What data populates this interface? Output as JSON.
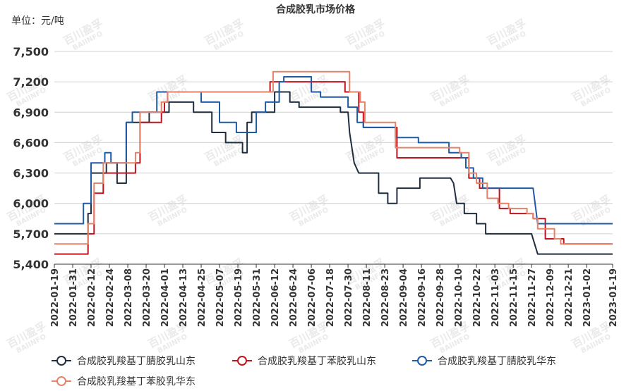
{
  "chart_data": {
    "type": "line",
    "title": "合成胶乳市场价格",
    "unit_label": "单位：元/吨",
    "ylim": [
      5400,
      7500
    ],
    "yticks": [
      "5,400",
      "5,700",
      "6,000",
      "6,300",
      "6,600",
      "6,900",
      "7,200",
      "7,500"
    ],
    "ytick_values": [
      5400,
      5700,
      6000,
      6300,
      6600,
      6900,
      7200,
      7500
    ],
    "xlim": [
      "2022-01-19",
      "2023-01-19"
    ],
    "xticks": [
      "2022-01-19",
      "2022-01-31",
      "2022-02-12",
      "2022-02-24",
      "2022-03-08",
      "2022-03-20",
      "2022-04-01",
      "2022-04-13",
      "2022-04-25",
      "2022-05-07",
      "2022-05-19",
      "2022-05-31",
      "2022-06-12",
      "2022-06-24",
      "2022-07-06",
      "2022-07-18",
      "2022-07-30",
      "2022-08-11",
      "2022-08-23",
      "2022-09-04",
      "2022-09-16",
      "2022-09-28",
      "2022-10-10",
      "2022-10-22",
      "2022-11-03",
      "2022-11-15",
      "2022-11-27",
      "2022-12-09",
      "2022-12-21",
      "2023-01-02",
      "2023-01-19"
    ],
    "grid": "horizontal",
    "legend_position": "bottom",
    "watermark": [
      "百川盈孚",
      "BAIINFO"
    ],
    "series": [
      {
        "name": "合成胶乳羧基丁腈胶乳山东",
        "color": "#1f2f3f",
        "points": [
          [
            "2022-01-19",
            5700
          ],
          [
            "2022-02-10",
            5700
          ],
          [
            "2022-02-10",
            5900
          ],
          [
            "2022-02-12",
            5900
          ],
          [
            "2022-02-12",
            6300
          ],
          [
            "2022-02-22",
            6300
          ],
          [
            "2022-02-22",
            6400
          ],
          [
            "2022-03-01",
            6400
          ],
          [
            "2022-03-01",
            6200
          ],
          [
            "2022-03-07",
            6200
          ],
          [
            "2022-03-07",
            6800
          ],
          [
            "2022-03-22",
            6800
          ],
          [
            "2022-03-22",
            6900
          ],
          [
            "2022-04-04",
            6900
          ],
          [
            "2022-04-04",
            7000
          ],
          [
            "2022-04-20",
            7000
          ],
          [
            "2022-04-20",
            6900
          ],
          [
            "2022-05-02",
            6900
          ],
          [
            "2022-05-02",
            6700
          ],
          [
            "2022-05-11",
            6700
          ],
          [
            "2022-05-11",
            6600
          ],
          [
            "2022-05-22",
            6600
          ],
          [
            "2022-05-22",
            6500
          ],
          [
            "2022-05-25",
            6500
          ],
          [
            "2022-05-25",
            6800
          ],
          [
            "2022-05-28",
            6800
          ],
          [
            "2022-05-28",
            6900
          ],
          [
            "2022-06-12",
            6900
          ],
          [
            "2022-06-12",
            7100
          ],
          [
            "2022-06-22",
            7100
          ],
          [
            "2022-06-22",
            7000
          ],
          [
            "2022-06-28",
            7000
          ],
          [
            "2022-06-28",
            6950
          ],
          [
            "2022-07-25",
            6950
          ],
          [
            "2022-07-25",
            6900
          ],
          [
            "2022-07-30",
            6900
          ],
          [
            "2022-07-31",
            6700
          ],
          [
            "2022-08-03",
            6400
          ],
          [
            "2022-08-06",
            6300
          ],
          [
            "2022-08-19",
            6300
          ],
          [
            "2022-08-19",
            6100
          ],
          [
            "2022-08-25",
            6100
          ],
          [
            "2022-08-25",
            6000
          ],
          [
            "2022-08-31",
            6000
          ],
          [
            "2022-08-31",
            6150
          ],
          [
            "2022-09-15",
            6150
          ],
          [
            "2022-09-15",
            6250
          ],
          [
            "2022-10-05",
            6250
          ],
          [
            "2022-10-07",
            6200
          ],
          [
            "2022-10-09",
            6000
          ],
          [
            "2022-10-14",
            6000
          ],
          [
            "2022-10-14",
            5900
          ],
          [
            "2022-10-22",
            5900
          ],
          [
            "2022-10-22",
            5800
          ],
          [
            "2022-10-28",
            5800
          ],
          [
            "2022-10-28",
            5700
          ],
          [
            "2022-11-27",
            5700
          ],
          [
            "2022-12-01",
            5500
          ],
          [
            "2023-01-19",
            5500
          ]
        ]
      },
      {
        "name": "合成胶乳羧基丁苯胶乳山东",
        "color": "#c0141f",
        "points": [
          [
            "2022-01-19",
            5500
          ],
          [
            "2022-02-10",
            5500
          ],
          [
            "2022-02-10",
            5700
          ],
          [
            "2022-02-14",
            5700
          ],
          [
            "2022-02-14",
            6100
          ],
          [
            "2022-02-20",
            6100
          ],
          [
            "2022-02-20",
            6300
          ],
          [
            "2022-03-13",
            6300
          ],
          [
            "2022-03-13",
            6400
          ],
          [
            "2022-03-16",
            6400
          ],
          [
            "2022-03-16",
            6800
          ],
          [
            "2022-03-30",
            6800
          ],
          [
            "2022-03-30",
            6900
          ],
          [
            "2022-04-01",
            6900
          ],
          [
            "2022-04-01",
            7000
          ],
          [
            "2022-04-03",
            7000
          ],
          [
            "2022-04-03",
            7100
          ],
          [
            "2022-06-09",
            7100
          ],
          [
            "2022-06-09",
            7200
          ],
          [
            "2022-07-28",
            7200
          ],
          [
            "2022-07-28",
            7100
          ],
          [
            "2022-08-06",
            7100
          ],
          [
            "2022-08-06",
            6900
          ],
          [
            "2022-08-09",
            6900
          ],
          [
            "2022-08-09",
            6750
          ],
          [
            "2022-08-31",
            6750
          ],
          [
            "2022-08-31",
            6450
          ],
          [
            "2022-10-17",
            6450
          ],
          [
            "2022-10-17",
            6250
          ],
          [
            "2022-10-24",
            6250
          ],
          [
            "2022-10-24",
            6150
          ],
          [
            "2022-11-06",
            6150
          ],
          [
            "2022-11-06",
            5950
          ],
          [
            "2022-11-13",
            5950
          ],
          [
            "2022-11-13",
            5900
          ],
          [
            "2022-11-28",
            5900
          ],
          [
            "2022-11-28",
            5850
          ],
          [
            "2022-12-06",
            5850
          ],
          [
            "2022-12-06",
            5650
          ],
          [
            "2022-12-18",
            5650
          ],
          [
            "2022-12-18",
            5600
          ],
          [
            "2023-01-19",
            5600
          ]
        ]
      },
      {
        "name": "合成胶乳羧基丁腈胶乳华东",
        "color": "#1f5aa6",
        "points": [
          [
            "2022-01-19",
            5800
          ],
          [
            "2022-02-07",
            5800
          ],
          [
            "2022-02-07",
            6000
          ],
          [
            "2022-02-12",
            6000
          ],
          [
            "2022-02-12",
            6400
          ],
          [
            "2022-02-21",
            6400
          ],
          [
            "2022-02-21",
            6500
          ],
          [
            "2022-02-25",
            6500
          ],
          [
            "2022-02-25",
            6400
          ],
          [
            "2022-03-07",
            6400
          ],
          [
            "2022-03-07",
            6800
          ],
          [
            "2022-03-11",
            6800
          ],
          [
            "2022-03-11",
            6900
          ],
          [
            "2022-03-27",
            6900
          ],
          [
            "2022-03-27",
            7100
          ],
          [
            "2022-04-25",
            7100
          ],
          [
            "2022-04-25",
            7000
          ],
          [
            "2022-05-07",
            7000
          ],
          [
            "2022-05-07",
            6800
          ],
          [
            "2022-05-18",
            6800
          ],
          [
            "2022-05-18",
            6700
          ],
          [
            "2022-05-31",
            6700
          ],
          [
            "2022-05-31",
            6900
          ],
          [
            "2022-06-06",
            6900
          ],
          [
            "2022-06-06",
            7000
          ],
          [
            "2022-06-15",
            7000
          ],
          [
            "2022-06-15",
            7200
          ],
          [
            "2022-06-18",
            7200
          ],
          [
            "2022-06-18",
            7250
          ],
          [
            "2022-07-06",
            7250
          ],
          [
            "2022-07-06",
            7100
          ],
          [
            "2022-07-12",
            7100
          ],
          [
            "2022-07-12",
            7050
          ],
          [
            "2022-07-30",
            7050
          ],
          [
            "2022-07-30",
            6950
          ],
          [
            "2022-08-05",
            6950
          ],
          [
            "2022-08-05",
            6800
          ],
          [
            "2022-08-09",
            6800
          ],
          [
            "2022-08-09",
            6750
          ],
          [
            "2022-08-30",
            6750
          ],
          [
            "2022-08-30",
            6650
          ],
          [
            "2022-09-14",
            6650
          ],
          [
            "2022-09-14",
            6600
          ],
          [
            "2022-10-04",
            6600
          ],
          [
            "2022-10-04",
            6500
          ],
          [
            "2022-10-12",
            6500
          ],
          [
            "2022-10-12",
            6450
          ],
          [
            "2022-10-15",
            6450
          ],
          [
            "2022-10-15",
            6350
          ],
          [
            "2022-10-20",
            6350
          ],
          [
            "2022-10-20",
            6250
          ],
          [
            "2022-10-26",
            6250
          ],
          [
            "2022-10-26",
            6150
          ],
          [
            "2022-11-28",
            6150
          ],
          [
            "2022-12-01",
            5800
          ],
          [
            "2023-01-19",
            5800
          ]
        ]
      },
      {
        "name": "合成胶乳羧基丁苯胶乳华东",
        "color": "#e4836a",
        "points": [
          [
            "2022-01-19",
            5600
          ],
          [
            "2022-02-10",
            5600
          ],
          [
            "2022-02-10",
            5800
          ],
          [
            "2022-02-14",
            5800
          ],
          [
            "2022-02-14",
            6200
          ],
          [
            "2022-02-20",
            6200
          ],
          [
            "2022-02-20",
            6400
          ],
          [
            "2022-03-13",
            6400
          ],
          [
            "2022-03-13",
            6500
          ],
          [
            "2022-03-16",
            6500
          ],
          [
            "2022-03-16",
            6900
          ],
          [
            "2022-03-30",
            6900
          ],
          [
            "2022-03-30",
            7000
          ],
          [
            "2022-04-03",
            7000
          ],
          [
            "2022-04-03",
            7100
          ],
          [
            "2022-06-11",
            7100
          ],
          [
            "2022-06-11",
            7300
          ],
          [
            "2022-07-31",
            7300
          ],
          [
            "2022-07-31",
            7100
          ],
          [
            "2022-08-07",
            7100
          ],
          [
            "2022-08-07",
            7000
          ],
          [
            "2022-08-10",
            7000
          ],
          [
            "2022-08-10",
            6800
          ],
          [
            "2022-08-30",
            6800
          ],
          [
            "2022-08-30",
            6550
          ],
          [
            "2022-10-11",
            6550
          ],
          [
            "2022-10-11",
            6500
          ],
          [
            "2022-10-17",
            6500
          ],
          [
            "2022-10-17",
            6300
          ],
          [
            "2022-10-22",
            6300
          ],
          [
            "2022-10-22",
            6200
          ],
          [
            "2022-10-29",
            6200
          ],
          [
            "2022-10-29",
            6050
          ],
          [
            "2022-11-05",
            6050
          ],
          [
            "2022-11-05",
            6000
          ],
          [
            "2022-11-12",
            6000
          ],
          [
            "2022-11-12",
            5950
          ],
          [
            "2022-11-24",
            5950
          ],
          [
            "2022-11-24",
            5900
          ],
          [
            "2022-11-28",
            5900
          ],
          [
            "2022-11-28",
            5850
          ],
          [
            "2022-12-01",
            5850
          ],
          [
            "2022-12-01",
            5750
          ],
          [
            "2022-12-12",
            5750
          ],
          [
            "2022-12-12",
            5650
          ],
          [
            "2022-12-16",
            5650
          ],
          [
            "2022-12-16",
            5600
          ],
          [
            "2023-01-19",
            5600
          ]
        ]
      }
    ]
  }
}
